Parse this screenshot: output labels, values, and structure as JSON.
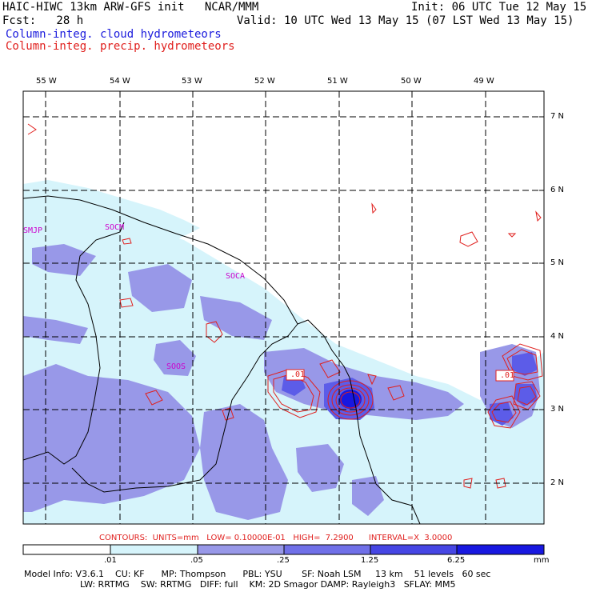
{
  "header": {
    "title_left": "HAIC-HIWC 13km ARW-GFS init   NCAR/MMM",
    "init_text": "Init: 06 UTC Tue 12 May 15",
    "fcst_text": "Fcst:   28 h",
    "valid_text": "Valid: 10 UTC Wed 13 May 15 (07 LST Wed 13 May 15)",
    "legend_cloud": "Column-integ. cloud hydrometeors",
    "legend_precip": "Column-integ. precip. hydrometeors",
    "color_cloud_text": "#1a1adc",
    "color_precip_text": "#e0201e"
  },
  "map": {
    "lon_labels": [
      "55 W",
      "54 W",
      "53 W",
      "52 W",
      "51 W",
      "50 W",
      "49 W"
    ],
    "lat_labels": [
      "7 N",
      "6 N",
      "5 N",
      "4 N",
      "3 N",
      "2 N"
    ],
    "stations": [
      "SMJP",
      "SOCM",
      "SOCA",
      "SOOS"
    ],
    "contour_labels": [
      ".01",
      ".01"
    ],
    "colors": {
      "light": "#d6f4fb",
      "medium": "#9898e8",
      "dark": "#5c5ce8",
      "darkest": "#1818e0",
      "contour": "#e0201e",
      "station": "#cc00cc"
    }
  },
  "contours_info": {
    "text": "CONTOURS:  UNITS=mm   LOW= 0.10000E-01   HIGH=  7.2900      INTERVAL=X  3.0000"
  },
  "colorbar": {
    "ticks": [
      ".01",
      ".05",
      ".25",
      "1.25",
      "6.25"
    ],
    "unit": "mm"
  },
  "footer": {
    "line1": "Model Info: V3.6.1    CU: KF      MP: Thompson      PBL: YSU       SF: Noah LSM     13 km    51 levels   60 sec",
    "line2": "LW: RRTMG    SW: RRTMG   DIFF: full    KM: 2D Smagor DAMP: Rayleigh3   SFLAY: MM5"
  }
}
